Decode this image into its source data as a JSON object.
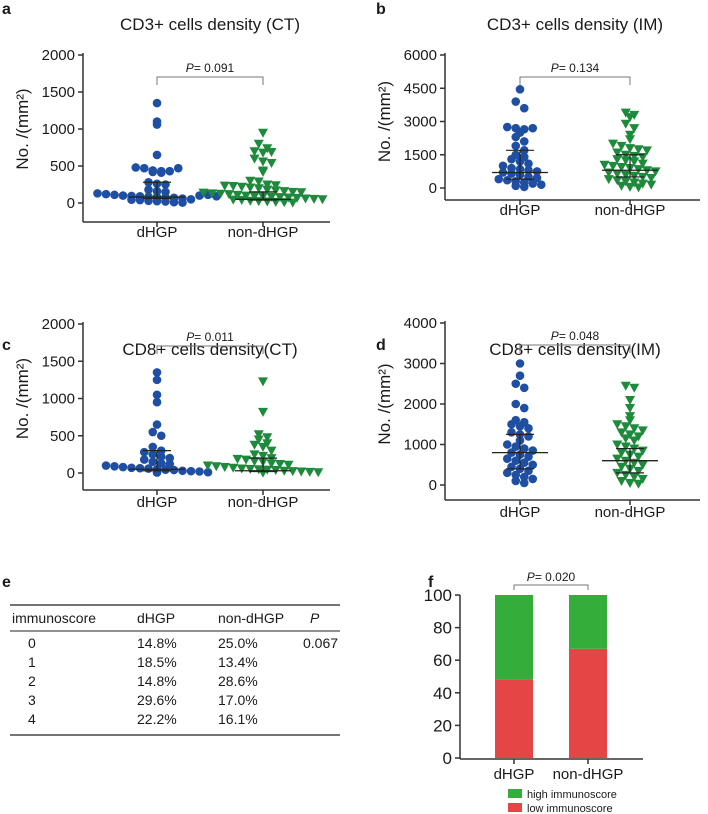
{
  "colors": {
    "dHGP": "#1f4fa3",
    "non_dHGP": "#1e8a3c",
    "high": "#35ad3a",
    "low": "#e64545",
    "axis": "#333333"
  },
  "chart_data": [
    {
      "panel": "a",
      "type": "scatter",
      "title": "CD3+ cells density (CT)",
      "ylabel": "No. /(mm²)",
      "ylim": [
        0,
        2000
      ],
      "yticks": [
        0,
        500,
        1000,
        1500,
        2000
      ],
      "categories": [
        "dHGP",
        "non-dHGP"
      ],
      "p_value": {
        "label": "P",
        "text": "= 0.091"
      },
      "series": [
        {
          "name": "dHGP",
          "marker": "circle",
          "center": 80,
          "err": [
            60,
            280
          ],
          "values": [
            1350,
            1100,
            1060,
            650,
            480,
            470,
            440,
            430,
            420,
            410,
            430,
            470,
            280,
            260,
            250,
            180,
            160,
            150,
            130,
            120,
            110,
            100,
            95,
            90,
            85,
            80,
            75,
            70,
            60,
            50,
            45,
            40,
            30,
            25,
            20,
            10,
            5,
            100,
            110,
            90
          ]
        },
        {
          "name": "non-dHGP",
          "marker": "triangle",
          "center": 50,
          "err": [
            40,
            150
          ],
          "values": [
            950,
            800,
            740,
            700,
            680,
            690,
            600,
            560,
            540,
            440,
            420,
            300,
            290,
            250,
            240,
            235,
            230,
            220,
            210,
            200,
            180,
            170,
            160,
            150,
            145,
            140,
            130,
            125,
            120,
            110,
            100,
            95,
            90,
            85,
            80,
            75,
            70,
            60,
            55,
            50,
            45,
            40,
            30,
            25,
            20,
            15,
            10,
            5
          ]
        }
      ]
    },
    {
      "panel": "b",
      "type": "scatter",
      "title": "CD3+ cells density (IM)",
      "ylabel": "No. /(mm²)",
      "ylim": [
        0,
        6000
      ],
      "yticks": [
        0,
        1500,
        3000,
        4500,
        6000
      ],
      "categories": [
        "dHGP",
        "non-dHGP"
      ],
      "p_value": {
        "label": "P",
        "text": "= 0.134"
      },
      "series": [
        {
          "name": "dHGP",
          "marker": "circle",
          "center": 700,
          "err": [
            400,
            1700
          ],
          "values": [
            4450,
            3900,
            3600,
            2750,
            2700,
            2650,
            2700,
            2500,
            2300,
            2100,
            1900,
            1700,
            1500,
            1400,
            1300,
            1200,
            1100,
            1000,
            900,
            850,
            800,
            750,
            700,
            650,
            600,
            500,
            450,
            400,
            350,
            300,
            250,
            200,
            150,
            100,
            50
          ]
        },
        {
          "name": "non-dHGP",
          "marker": "triangle",
          "center": 800,
          "err": [
            500,
            1500
          ],
          "values": [
            3400,
            3300,
            3200,
            2900,
            2700,
            2400,
            2200,
            2000,
            1900,
            1800,
            1750,
            1700,
            1600,
            1500,
            1450,
            1400,
            1300,
            1250,
            1200,
            1100,
            1050,
            1000,
            950,
            900,
            850,
            800,
            750,
            700,
            650,
            600,
            550,
            500,
            450,
            400,
            350,
            300,
            250,
            200,
            150,
            100,
            50,
            30
          ]
        }
      ]
    },
    {
      "panel": "c",
      "type": "scatter",
      "title": "CD8+ cells density(CT)",
      "ylabel": "No. /(mm²)",
      "ylim": [
        0,
        2000
      ],
      "yticks": [
        0,
        500,
        1000,
        1500,
        2000
      ],
      "categories": [
        "dHGP",
        "non-dHGP"
      ],
      "p_value": {
        "label": "P",
        "text": "= 0.011"
      },
      "series": [
        {
          "name": "dHGP",
          "marker": "circle",
          "center": 50,
          "err": [
            30,
            300
          ],
          "values": [
            1350,
            1250,
            1050,
            950,
            650,
            550,
            500,
            350,
            300,
            280,
            250,
            220,
            200,
            180,
            150,
            130,
            120,
            100,
            90,
            80,
            70,
            65,
            60,
            50,
            45,
            40,
            30,
            25,
            20,
            10,
            5
          ]
        },
        {
          "name": "non-dHGP",
          "marker": "triangle",
          "center": 30,
          "err": [
            20,
            200
          ],
          "values": [
            1230,
            820,
            520,
            480,
            450,
            400,
            380,
            350,
            300,
            250,
            230,
            200,
            190,
            180,
            160,
            150,
            130,
            120,
            110,
            100,
            90,
            80,
            70,
            60,
            55,
            50,
            45,
            40,
            30,
            25,
            20,
            15,
            10,
            5
          ]
        }
      ]
    },
    {
      "panel": "d",
      "type": "scatter",
      "title": "CD8+ cells density(IM)",
      "ylabel": "No. /(mm²)",
      "ylim": [
        0,
        4000
      ],
      "yticks": [
        0,
        1000,
        2000,
        3000,
        4000
      ],
      "categories": [
        "dHGP",
        "non-dHGP"
      ],
      "p_value": {
        "label": "P",
        "text": "= 0.048"
      },
      "series": [
        {
          "name": "dHGP",
          "marker": "circle",
          "center": 800,
          "err": [
            400,
            1250
          ],
          "values": [
            3000,
            2700,
            2500,
            2400,
            2000,
            1900,
            1600,
            1550,
            1500,
            1450,
            1400,
            1300,
            1250,
            1200,
            1100,
            1000,
            950,
            900,
            850,
            800,
            750,
            700,
            650,
            600,
            550,
            500,
            450,
            400,
            350,
            300,
            250,
            200,
            150,
            100,
            50
          ]
        },
        {
          "name": "non-dHGP",
          "marker": "triangle",
          "center": 600,
          "err": [
            300,
            900
          ],
          "values": [
            2450,
            2400,
            2100,
            1900,
            1700,
            1600,
            1500,
            1450,
            1400,
            1350,
            1300,
            1250,
            1200,
            1150,
            1100,
            1000,
            950,
            900,
            850,
            800,
            750,
            700,
            650,
            600,
            550,
            500,
            450,
            400,
            350,
            300,
            250,
            200,
            150,
            100,
            50,
            30
          ]
        }
      ]
    },
    {
      "panel": "e",
      "type": "table",
      "headers": [
        "immunoscore",
        "dHGP",
        "non-dHGP",
        "P"
      ],
      "rows": [
        [
          "0",
          "14.8%",
          "25.0%",
          "0.067"
        ],
        [
          "1",
          "18.5%",
          "13.4%",
          ""
        ],
        [
          "2",
          "14.8%",
          "28.6%",
          ""
        ],
        [
          "3",
          "29.6%",
          "17.0%",
          ""
        ],
        [
          "4",
          "22.2%",
          "16.1%",
          ""
        ]
      ]
    },
    {
      "panel": "f",
      "type": "bar",
      "stacked": true,
      "categories": [
        "dHGP",
        "non-dHGP"
      ],
      "ylim": [
        0,
        100
      ],
      "yticks": [
        0,
        20,
        40,
        60,
        80,
        100
      ],
      "p_value": {
        "label": "P",
        "text": "= 0.020"
      },
      "series": [
        {
          "name": "low immunoscore",
          "values": [
            48.1,
            67.0
          ]
        },
        {
          "name": "high immunoscore",
          "values": [
            51.9,
            33.0
          ]
        }
      ],
      "legend": [
        "high immunoscore",
        "low immunoscore"
      ],
      "legend_position": "bottom"
    }
  ]
}
